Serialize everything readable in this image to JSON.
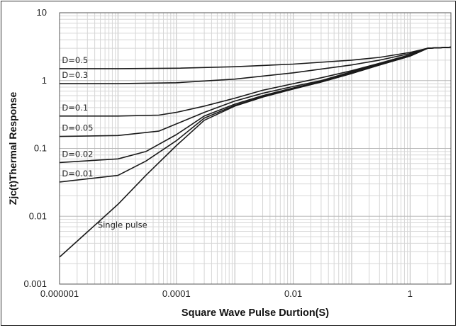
{
  "chart_data": {
    "type": "line",
    "title": "",
    "xlabel": "Square Wave Pulse Durtion(S)",
    "ylabel": "Zjc(t)Thermal Response",
    "xscale": "log",
    "yscale": "log",
    "xlim": [
      1e-06,
      5
    ],
    "ylim": [
      0.001,
      10
    ],
    "grid": true,
    "x_tick_labels": [
      "0.000001",
      "0.0001",
      "0.01",
      "1"
    ],
    "x_tick_values": [
      1e-06,
      0.0001,
      0.01,
      1
    ],
    "y_tick_labels": [
      "0.001",
      "0.01",
      "0.1",
      "1",
      "10"
    ],
    "y_tick_values": [
      0.001,
      0.01,
      0.1,
      1,
      10
    ],
    "series": [
      {
        "name": "D=0.5",
        "points": [
          [
            1e-06,
            1.5
          ],
          [
            1e-05,
            1.5
          ],
          [
            0.0001,
            1.52
          ],
          [
            0.001,
            1.6
          ],
          [
            0.01,
            1.75
          ],
          [
            0.1,
            2.0
          ],
          [
            0.3,
            2.2
          ],
          [
            1,
            2.6
          ],
          [
            2,
            3.0
          ],
          [
            5,
            3.1
          ]
        ]
      },
      {
        "name": "D=0.3",
        "points": [
          [
            1e-06,
            0.9
          ],
          [
            1e-05,
            0.9
          ],
          [
            0.0001,
            0.93
          ],
          [
            0.001,
            1.05
          ],
          [
            0.01,
            1.3
          ],
          [
            0.1,
            1.7
          ],
          [
            0.3,
            2.0
          ],
          [
            1,
            2.5
          ],
          [
            2,
            3.0
          ],
          [
            5,
            3.1
          ]
        ]
      },
      {
        "name": "D=0.1",
        "points": [
          [
            1e-06,
            0.3
          ],
          [
            1e-05,
            0.3
          ],
          [
            5e-05,
            0.31
          ],
          [
            0.0001,
            0.34
          ],
          [
            0.0003,
            0.42
          ],
          [
            0.001,
            0.55
          ],
          [
            0.003,
            0.72
          ],
          [
            0.01,
            0.9
          ],
          [
            0.03,
            1.1
          ],
          [
            0.1,
            1.4
          ],
          [
            0.3,
            1.8
          ],
          [
            1,
            2.4
          ],
          [
            2,
            3.0
          ],
          [
            5,
            3.1
          ]
        ]
      },
      {
        "name": "D=0.05",
        "points": [
          [
            1e-06,
            0.15
          ],
          [
            1e-05,
            0.155
          ],
          [
            5e-05,
            0.18
          ],
          [
            0.0001,
            0.23
          ],
          [
            0.0003,
            0.34
          ],
          [
            0.001,
            0.5
          ],
          [
            0.003,
            0.65
          ],
          [
            0.01,
            0.82
          ],
          [
            0.03,
            1.0
          ],
          [
            0.1,
            1.35
          ],
          [
            0.3,
            1.75
          ],
          [
            1,
            2.35
          ],
          [
            2,
            3.0
          ],
          [
            5,
            3.1
          ]
        ]
      },
      {
        "name": "D=0.02",
        "points": [
          [
            1e-06,
            0.062
          ],
          [
            1e-05,
            0.07
          ],
          [
            3e-05,
            0.09
          ],
          [
            0.0001,
            0.16
          ],
          [
            0.0003,
            0.3
          ],
          [
            0.001,
            0.45
          ],
          [
            0.003,
            0.6
          ],
          [
            0.01,
            0.78
          ],
          [
            0.03,
            0.97
          ],
          [
            0.1,
            1.3
          ],
          [
            0.3,
            1.7
          ],
          [
            1,
            2.3
          ],
          [
            2,
            3.0
          ],
          [
            5,
            3.1
          ]
        ]
      },
      {
        "name": "D=0.01",
        "points": [
          [
            1e-06,
            0.032
          ],
          [
            1e-05,
            0.04
          ],
          [
            3e-05,
            0.065
          ],
          [
            0.0001,
            0.13
          ],
          [
            0.0003,
            0.28
          ],
          [
            0.001,
            0.43
          ],
          [
            0.003,
            0.58
          ],
          [
            0.01,
            0.76
          ],
          [
            0.03,
            0.95
          ],
          [
            0.1,
            1.28
          ],
          [
            0.3,
            1.7
          ],
          [
            1,
            2.3
          ],
          [
            2,
            3.0
          ],
          [
            5,
            3.1
          ]
        ]
      },
      {
        "name": "Single pulse",
        "points": [
          [
            1e-06,
            0.0025
          ],
          [
            1e-05,
            0.015
          ],
          [
            3e-05,
            0.04
          ],
          [
            0.0001,
            0.11
          ],
          [
            0.0003,
            0.26
          ],
          [
            0.001,
            0.42
          ],
          [
            0.003,
            0.57
          ],
          [
            0.01,
            0.75
          ],
          [
            0.03,
            0.95
          ],
          [
            0.1,
            1.27
          ],
          [
            0.3,
            1.7
          ],
          [
            1,
            2.3
          ],
          [
            2,
            3.0
          ],
          [
            5,
            3.1
          ]
        ]
      }
    ],
    "annotations": [
      "D=0.5",
      "D=0.3",
      "D=0.1",
      "D=0.05",
      "D=0.02",
      "D=0.01",
      "Single  pulse"
    ]
  }
}
